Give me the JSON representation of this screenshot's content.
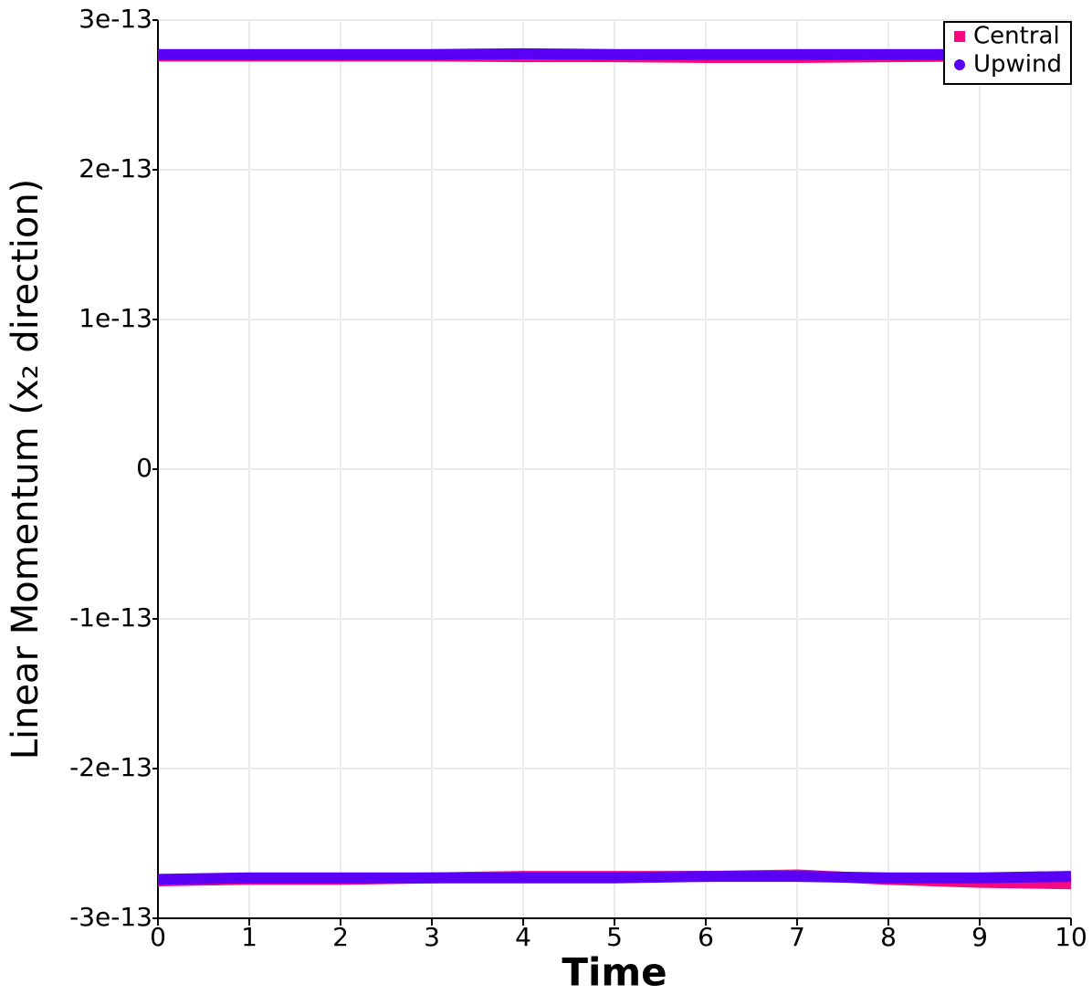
{
  "chart_data": {
    "type": "line",
    "x_label": "Time",
    "y_label": "Linear Momentum (x₂ direction)",
    "xlim": [
      0,
      10
    ],
    "xticks": [
      0,
      1,
      2,
      3,
      4,
      5,
      6,
      7,
      8,
      9,
      10
    ],
    "ylim": [
      -3e-13,
      3e-13
    ],
    "yticks": [
      {
        "value": -3e-13,
        "label": "-3e-13"
      },
      {
        "value": -2e-13,
        "label": "-2e-13"
      },
      {
        "value": -1e-13,
        "label": "-1e-13"
      },
      0,
      {
        "value": 1e-13,
        "label": "1e-13"
      },
      {
        "value": 2e-13,
        "label": "2e-13"
      },
      {
        "value": 3e-13,
        "label": "3e-13"
      }
    ],
    "grid": true,
    "legend": "upper right",
    "x": [
      0,
      1,
      2,
      3,
      4,
      5,
      6,
      7,
      8,
      9,
      10,
      10,
      0,
      1,
      2,
      3,
      4,
      5,
      6,
      7,
      8,
      9,
      10
    ],
    "series": [
      {
        "name": "Central",
        "color": "#f5097f",
        "values": [
          2.76e-13,
          2.76e-13,
          2.76e-13,
          2.76e-13,
          2.755e-13,
          2.755e-13,
          2.75e-13,
          2.75e-13,
          2.755e-13,
          2.76e-13,
          2.76e-13,
          null,
          -2.75e-13,
          -2.74e-13,
          -2.74e-13,
          -2.73e-13,
          -2.72e-13,
          -2.72e-13,
          -2.72e-13,
          -2.71e-13,
          -2.74e-13,
          -2.76e-13,
          -2.77e-13
        ]
      },
      {
        "name": "Upwind",
        "color": "#5a00f5",
        "values": [
          2.77e-13,
          2.77e-13,
          2.77e-13,
          2.77e-13,
          2.775e-13,
          2.77e-13,
          2.77e-13,
          2.77e-13,
          2.77e-13,
          2.77e-13,
          2.77e-13,
          null,
          -2.74e-13,
          -2.73e-13,
          -2.73e-13,
          -2.73e-13,
          -2.73e-13,
          -2.73e-13,
          -2.72e-13,
          -2.72e-13,
          -2.73e-13,
          -2.73e-13,
          -2.72e-13
        ]
      }
    ]
  }
}
